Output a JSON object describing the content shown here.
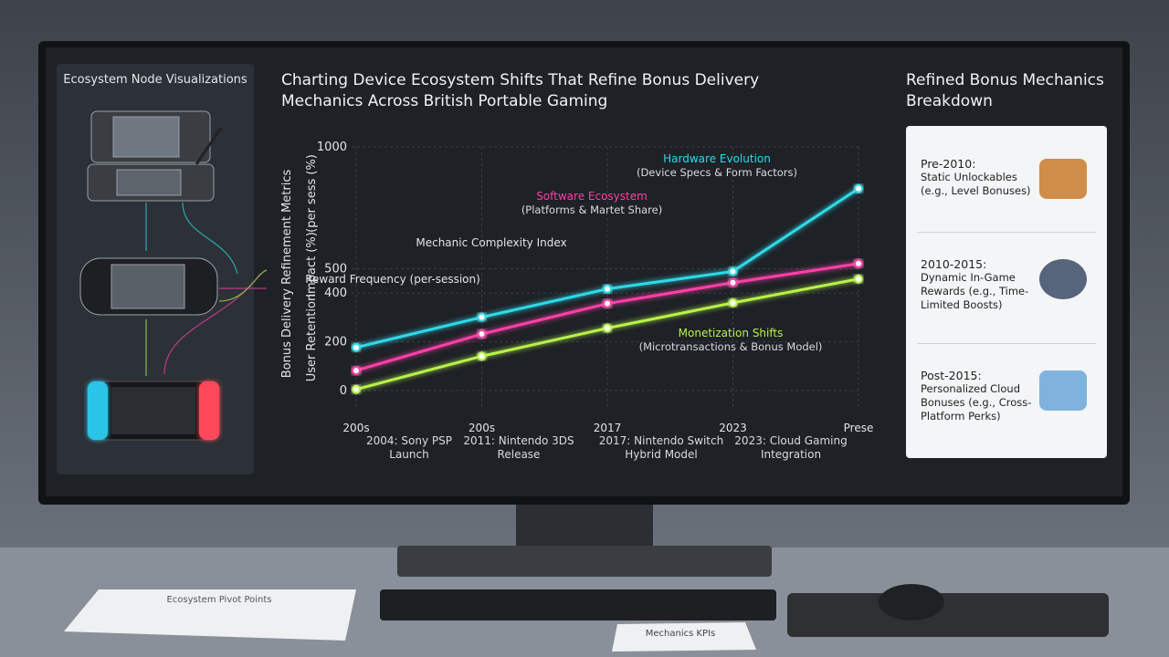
{
  "left_panel": {
    "title": "Ecosystem Node Visualizations"
  },
  "chart_data": {
    "type": "line",
    "title": "Charting Device Ecosystem Shifts That Refine Bonus Delivery Mechanics Across British Portable Gaming",
    "y_axis_labels": [
      "Bonus Delivery Refinement Metrics",
      "User Retention",
      "Impact (%)",
      "(per sess (%)"
    ],
    "categories": [
      "200s",
      "200s",
      "2017",
      "2023",
      "Prese"
    ],
    "events": [
      "2004: Sony PSP Launch",
      "2011: Nintendo 3DS Release",
      "2017: Nintendo Switch Hybrid Model",
      "2023: Cloud Gaming Integration"
    ],
    "ylim": [
      0,
      1000
    ],
    "yticks": [
      0,
      200,
      400,
      500,
      1000
    ],
    "grid": true,
    "series": [
      {
        "name": "Hardware Evolution",
        "note": "(Device Specs & Form Factors)",
        "color": "#2fd9e8",
        "values": [
          177,
          301,
          417,
          489,
          829
        ]
      },
      {
        "name": "Software Ecosystem",
        "note": "(Platforms & Martet Share)",
        "color": "#ff3fa8",
        "values": [
          82,
          232,
          357,
          443,
          521
        ]
      },
      {
        "name": "Monetization Shifts",
        "note": "(Microtransactions & Bonus Model)",
        "color": "#b8f24a",
        "values": [
          5,
          141,
          256,
          360,
          458
        ]
      }
    ],
    "annotations": [
      "Mechanic Complexity Index",
      "Reward Frequency (per-session)"
    ]
  },
  "right_panel": {
    "title": "Refined Bonus Mechanics Breakdown",
    "items": [
      {
        "heading": "Pre-2010:",
        "text": "Static Unlockables (e.g., Level Bonuses)"
      },
      {
        "heading": "2010-2015:",
        "text": "Dynamic In-Game Rewards (e.g., Time-Limited Boosts)"
      },
      {
        "heading": "Post-2015:",
        "text": "Personalized Cloud Bonuses (e.g., Cross-Platform Perks)"
      }
    ]
  },
  "desk": {
    "paper_left": "Ecosystem Pivot Points",
    "paper_right": "Mechanics KPIs"
  }
}
